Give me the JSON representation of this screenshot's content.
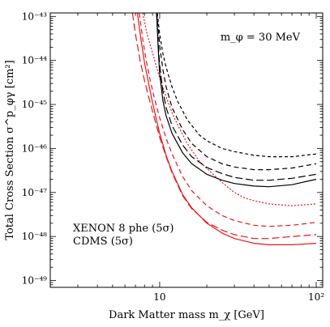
{
  "chart_data": {
    "type": "line",
    "title": "",
    "xlabel": "Dark Matter mass  m_χ  [GeV]",
    "ylabel": "Total Cross Section  σ^p_φγ [cm²]",
    "xscale": "log",
    "yscale": "log",
    "xlim": [
      2,
      110
    ],
    "ylim": [
      7e-50,
      1.2e-43
    ],
    "x_ticks": [
      {
        "value": 10,
        "label": "10"
      },
      {
        "value": 100,
        "label": "10²"
      }
    ],
    "y_ticks": [
      {
        "value": 1e-49,
        "label": "10⁻⁴⁹"
      },
      {
        "value": 1e-48,
        "label": "10⁻⁴⁸"
      },
      {
        "value": 1e-47,
        "label": "10⁻⁴⁷"
      },
      {
        "value": 1e-46,
        "label": "10⁻⁴⁶"
      },
      {
        "value": 1e-45,
        "label": "10⁻⁴⁵"
      },
      {
        "value": 1e-44,
        "label": "10⁻⁴⁴"
      },
      {
        "value": 1e-43,
        "label": "10⁻⁴³"
      }
    ],
    "annotation": "m_φ = 30 MeV",
    "legend": [
      {
        "label": "XENON 8 phe (5σ)",
        "color": "#e8151b"
      },
      {
        "label": "CDMS (5σ)",
        "color": "#000000"
      }
    ],
    "legend_position": "bottom-left",
    "series": [
      {
        "color": "#e8151b",
        "dash": "solid",
        "x": [
          7.2,
          7.6,
          8,
          8.5,
          9,
          10,
          11,
          12,
          14,
          16,
          20,
          25,
          30,
          40,
          50,
          70,
          100
        ],
        "y": [
          1.2e-43,
          3e-44,
          9e-45,
          3e-45,
          1.1e-45,
          2.2e-46,
          7e-47,
          3e-47,
          9e-48,
          4.5e-48,
          2e-48,
          1.2e-48,
          9e-49,
          7e-49,
          6.5e-49,
          6.5e-49,
          7e-49
        ]
      },
      {
        "color": "#e8151b",
        "dash": "long",
        "x": [
          6.7,
          7,
          7.5,
          8,
          8.5,
          9,
          10,
          11,
          12,
          14,
          16,
          20,
          25,
          30,
          40,
          50,
          70,
          100
        ],
        "y": [
          1.2e-43,
          4e-44,
          1e-44,
          3.5e-45,
          1.5e-45,
          7e-46,
          1.8e-46,
          6.5e-47,
          2.8e-47,
          8.5e-48,
          4.3e-48,
          2.1e-48,
          1.4e-48,
          1.1e-48,
          9e-49,
          9e-49,
          1e-48,
          1.1e-48
        ]
      },
      {
        "color": "#e8151b",
        "dash": "medium",
        "x": [
          7.4,
          7.8,
          8.2,
          8.7,
          9.3,
          10,
          11,
          12,
          14,
          16,
          20,
          25,
          30,
          40,
          50,
          70,
          100
        ],
        "y": [
          1.2e-43,
          3e-44,
          1e-44,
          3.5e-45,
          1.3e-45,
          5e-46,
          1.7e-46,
          7.5e-47,
          2.3e-47,
          1.1e-47,
          5e-48,
          3e-48,
          2.3e-48,
          1.8e-48,
          1.7e-48,
          1.8e-48,
          2.1e-48
        ]
      },
      {
        "color": "#e8151b",
        "dash": "dotted",
        "x": [
          7.8,
          8.3,
          9,
          10,
          11,
          12,
          13,
          15,
          18,
          20,
          25,
          30,
          35,
          40,
          50,
          70,
          100
        ],
        "y": [
          1.2e-43,
          4e-44,
          1.5e-44,
          4e-45,
          1.5e-45,
          6.5e-46,
          3.5e-46,
          1.3e-46,
          5e-47,
          3.5e-47,
          1.7e-47,
          1e-47,
          7.5e-48,
          6.5e-48,
          5.5e-48,
          5e-48,
          5.5e-48
        ]
      },
      {
        "color": "#000000",
        "dash": "solid",
        "x": [
          9.55,
          9.8,
          10,
          10.5,
          11,
          12,
          14,
          16,
          20,
          25,
          30,
          40,
          50,
          70,
          100
        ],
        "y": [
          1.2e-43,
          1.6e-44,
          5e-45,
          1.2e-45,
          5.5e-46,
          2.2e-46,
          8e-47,
          4.5e-47,
          2.6e-47,
          1.9e-47,
          1.6e-47,
          1.4e-47,
          1.35e-47,
          1.5e-47,
          2e-47
        ]
      },
      {
        "color": "#000000",
        "dash": "long",
        "x": [
          9.55,
          9.8,
          10,
          10.5,
          11,
          12,
          14,
          16,
          20,
          25,
          30,
          40,
          50,
          70,
          100
        ],
        "y": [
          1.2e-43,
          2.2e-44,
          8e-45,
          2e-45,
          8.5e-46,
          3.3e-46,
          1.2e-46,
          6.5e-47,
          3.7e-47,
          2.7e-47,
          2.2e-47,
          1.9e-47,
          1.9e-47,
          2.1e-47,
          2.6e-47
        ]
      },
      {
        "color": "#000000",
        "dash": "medium",
        "x": [
          9.6,
          10,
          10.5,
          11,
          12,
          14,
          16,
          20,
          25,
          30,
          40,
          50,
          70,
          100
        ],
        "y": [
          1.2e-43,
          2.2e-44,
          6e-45,
          2.5e-45,
          8.5e-46,
          2.7e-46,
          1.3e-46,
          6.5e-47,
          4.5e-47,
          3.8e-47,
          3.3e-47,
          3.3e-47,
          3.6e-47,
          4.5e-47
        ]
      },
      {
        "color": "#000000",
        "dash": "short",
        "x": [
          9.65,
          10,
          10.5,
          11,
          12,
          13,
          15,
          18,
          20,
          25,
          30,
          40,
          50,
          70,
          100
        ],
        "y": [
          1.2e-43,
          4e-44,
          1.4e-44,
          7e-45,
          2.5e-45,
          1.2e-45,
          4.5e-46,
          2e-46,
          1.5e-46,
          1e-46,
          8.5e-47,
          7e-47,
          6.5e-47,
          6.5e-47,
          7.5e-47
        ]
      }
    ]
  }
}
